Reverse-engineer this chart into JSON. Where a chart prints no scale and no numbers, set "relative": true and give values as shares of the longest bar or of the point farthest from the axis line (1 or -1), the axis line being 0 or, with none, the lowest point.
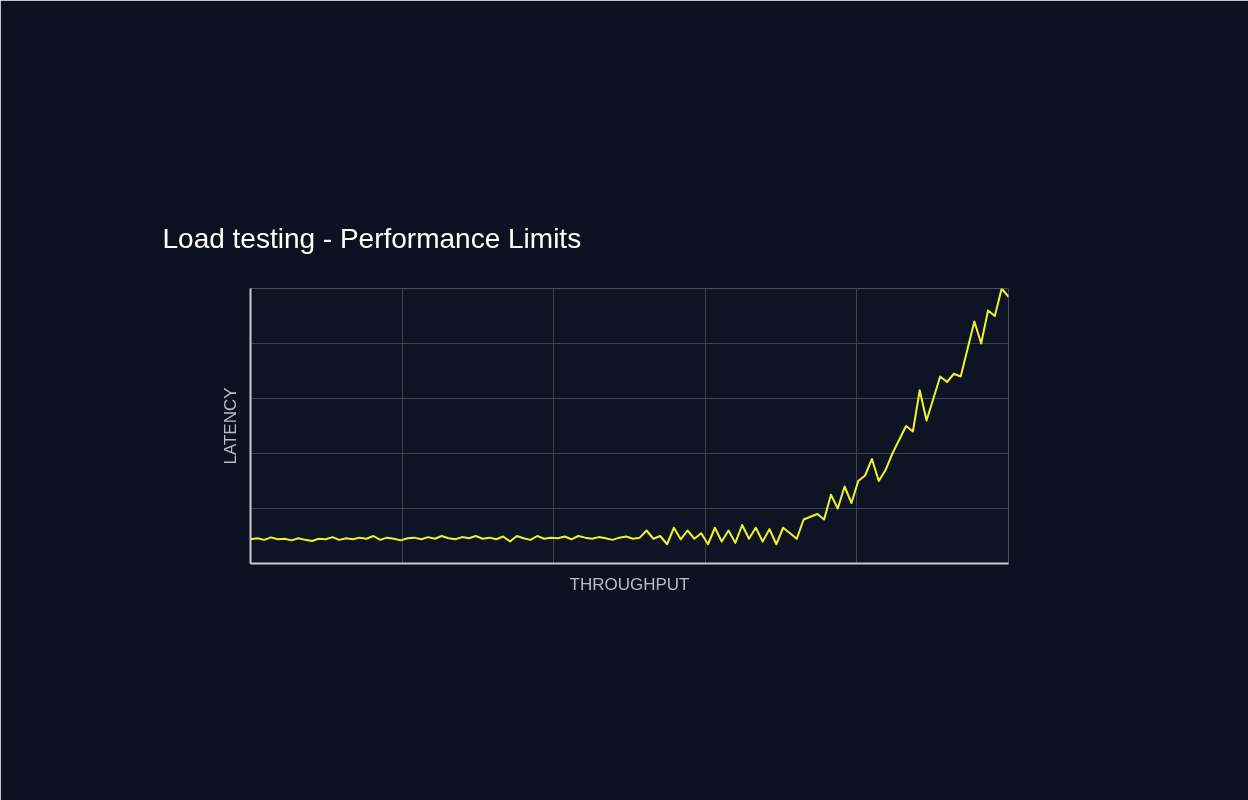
{
  "chart_data": {
    "type": "line",
    "title": "Load testing - Performance Limits",
    "xlabel": "THROUGHPUT",
    "ylabel": "LATENCY",
    "relative": true,
    "grid": true,
    "marker": "none",
    "line_style": "solid",
    "categories": [
      null,
      null,
      null,
      null,
      null,
      null,
      null,
      null,
      null,
      null,
      null,
      null,
      null,
      null,
      null,
      null,
      null,
      null,
      null,
      null,
      null,
      null,
      null,
      null,
      null,
      null,
      null,
      null,
      null,
      null,
      null,
      null,
      null,
      null,
      null,
      null,
      null,
      null,
      null,
      null,
      null,
      null,
      null,
      null,
      null,
      null,
      null,
      null,
      null,
      null,
      null,
      null,
      null,
      null,
      null,
      null,
      null,
      null,
      null,
      null,
      null,
      null,
      null,
      null,
      null,
      null,
      null,
      null,
      null,
      null,
      null,
      null,
      null,
      null,
      null,
      null,
      null,
      null,
      null,
      null,
      null,
      null,
      null,
      null,
      null,
      null,
      null,
      null,
      null,
      null,
      null,
      null,
      null,
      null,
      null,
      null,
      null,
      null,
      null,
      null,
      null,
      null,
      null,
      null,
      null,
      null,
      null,
      null,
      null,
      null,
      null,
      null
    ],
    "series": [
      {
        "color": "#f0f032",
        "values": [
          0.088,
          0.092,
          0.086,
          0.095,
          0.088,
          0.09,
          0.084,
          0.092,
          0.086,
          0.082,
          0.09,
          0.088,
          0.096,
          0.086,
          0.092,
          0.088,
          0.094,
          0.09,
          0.1,
          0.086,
          0.094,
          0.09,
          0.084,
          0.092,
          0.094,
          0.088,
          0.096,
          0.09,
          0.1,
          0.092,
          0.088,
          0.096,
          0.092,
          0.1,
          0.09,
          0.094,
          0.088,
          0.098,
          0.08,
          0.1,
          0.092,
          0.086,
          0.1,
          0.09,
          0.094,
          0.092,
          0.098,
          0.088,
          0.1,
          0.094,
          0.09,
          0.096,
          0.092,
          0.086,
          0.094,
          0.098,
          0.09,
          0.094,
          0.12,
          0.09,
          0.1,
          0.07,
          0.13,
          0.088,
          0.12,
          0.09,
          0.11,
          0.07,
          0.13,
          0.08,
          0.12,
          0.075,
          0.14,
          0.09,
          0.13,
          0.08,
          0.125,
          0.07,
          0.13,
          0.11,
          0.09,
          0.16,
          0.17,
          0.18,
          0.16,
          0.25,
          0.2,
          0.28,
          0.22,
          0.3,
          0.32,
          0.38,
          0.3,
          0.34,
          0.4,
          0.45,
          0.5,
          0.48,
          0.63,
          0.52,
          0.6,
          0.68,
          0.66,
          0.69,
          0.68,
          0.78,
          0.88,
          0.8,
          0.92,
          0.9,
          1.0,
          0.97
        ]
      }
    ]
  }
}
